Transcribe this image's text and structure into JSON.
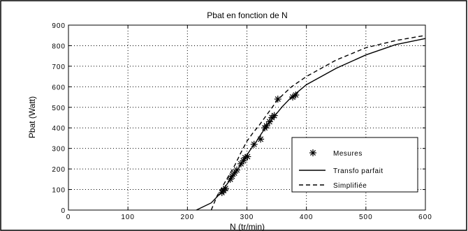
{
  "chart_data": {
    "type": "line",
    "title": "Pbat en fonction de N",
    "xlabel": "N (tr/min)",
    "ylabel": "Pbat (Watt)",
    "xlim": [
      0,
      600
    ],
    "ylim": [
      0,
      900
    ],
    "xticks": [
      0,
      100,
      200,
      300,
      400,
      500,
      600
    ],
    "yticks": [
      0,
      100,
      200,
      300,
      400,
      500,
      600,
      700,
      800,
      900
    ],
    "xtick_labels": [
      "0",
      "100",
      "200",
      "300",
      "400",
      "500",
      "600"
    ],
    "ytick_labels": [
      "0",
      "100",
      "200",
      "300",
      "400",
      "500",
      "600",
      "700",
      "800",
      "900"
    ],
    "grid": true,
    "legend_position": "lower-right",
    "series": [
      {
        "name": "Mesures",
        "style": "markers-asterisk",
        "x": [
          258,
          261,
          264,
          272,
          275,
          279,
          283,
          290,
          294,
          297,
          301,
          312,
          323,
          330,
          333,
          338,
          342,
          346,
          352,
          377,
          382
        ],
        "y": [
          85,
          95,
          105,
          150,
          165,
          180,
          195,
          225,
          240,
          255,
          260,
          320,
          345,
          400,
          410,
          430,
          450,
          460,
          540,
          550,
          560
        ]
      },
      {
        "name": "Transfo parfait",
        "style": "solid",
        "x": [
          215,
          240,
          255,
          265,
          275,
          285,
          295,
          305,
          315,
          325,
          335,
          350,
          360,
          375,
          400,
          450,
          500,
          550,
          600
        ],
        "y": [
          0,
          35,
          80,
          120,
          160,
          200,
          245,
          290,
          330,
          375,
          415,
          470,
          505,
          550,
          610,
          690,
          755,
          805,
          835
        ]
      },
      {
        "name": "Simplifiée",
        "style": "dashed",
        "x": [
          240,
          250,
          260,
          270,
          280,
          290,
          300,
          310,
          320,
          330,
          340,
          350,
          360,
          375,
          400,
          450,
          500,
          550,
          600
        ],
        "y": [
          0,
          70,
          120,
          170,
          220,
          280,
          335,
          375,
          410,
          450,
          490,
          530,
          560,
          600,
          650,
          730,
          790,
          825,
          850
        ]
      }
    ]
  }
}
